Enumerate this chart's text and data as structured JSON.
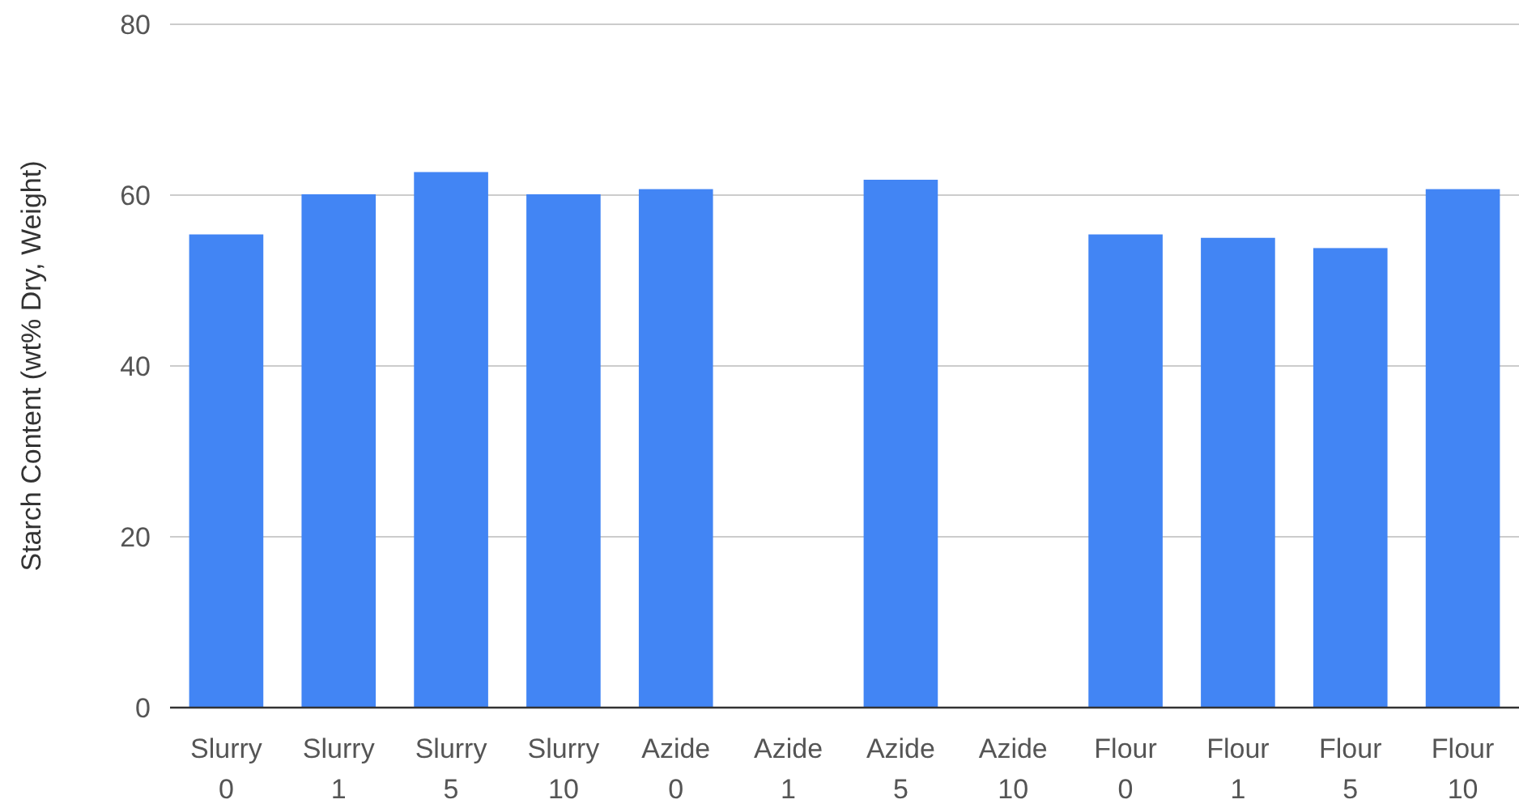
{
  "chart_data": {
    "type": "bar",
    "ylabel": "Starch Content (wt% Dry, Weight)",
    "categories": [
      "Slurry 0",
      "Slurry 1",
      "Slurry 5",
      "Slurry 10",
      "Azide 0",
      "Azide 1",
      "Azide 5",
      "Azide 10",
      "Flour 0",
      "Flour 1",
      "Flour 5",
      "Flour 10"
    ],
    "values": [
      55.4,
      60.1,
      62.7,
      60.1,
      60.7,
      null,
      61.8,
      null,
      55.4,
      55.0,
      53.8,
      60.7
    ],
    "color": "#4285f4",
    "ylim": [
      0,
      80
    ],
    "yticks": [
      0,
      20,
      40,
      60,
      80
    ],
    "grid": "y"
  }
}
